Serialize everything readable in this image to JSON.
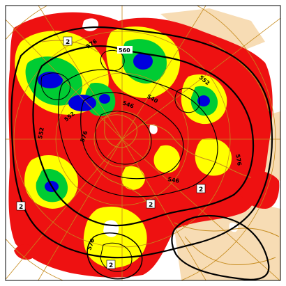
{
  "map": {
    "colors": {
      "background": "#ffffff",
      "red_band": "#ee1111",
      "yellow_band": "#ffff00",
      "green_band": "#00cc33",
      "blue_band": "#0000dd",
      "white_band": "#ffffff",
      "land": "#f7dcb4",
      "coastline": "#c58a1c",
      "graticule": "#c58a1c",
      "contour": "#000000"
    },
    "contour_labels": [
      "560",
      "576",
      "576",
      "576",
      "576",
      "540",
      "546",
      "552",
      "546",
      "552",
      "552"
    ],
    "box_labels": [
      "2",
      "2",
      "2",
      "2",
      "2"
    ],
    "legend_labels": []
  }
}
